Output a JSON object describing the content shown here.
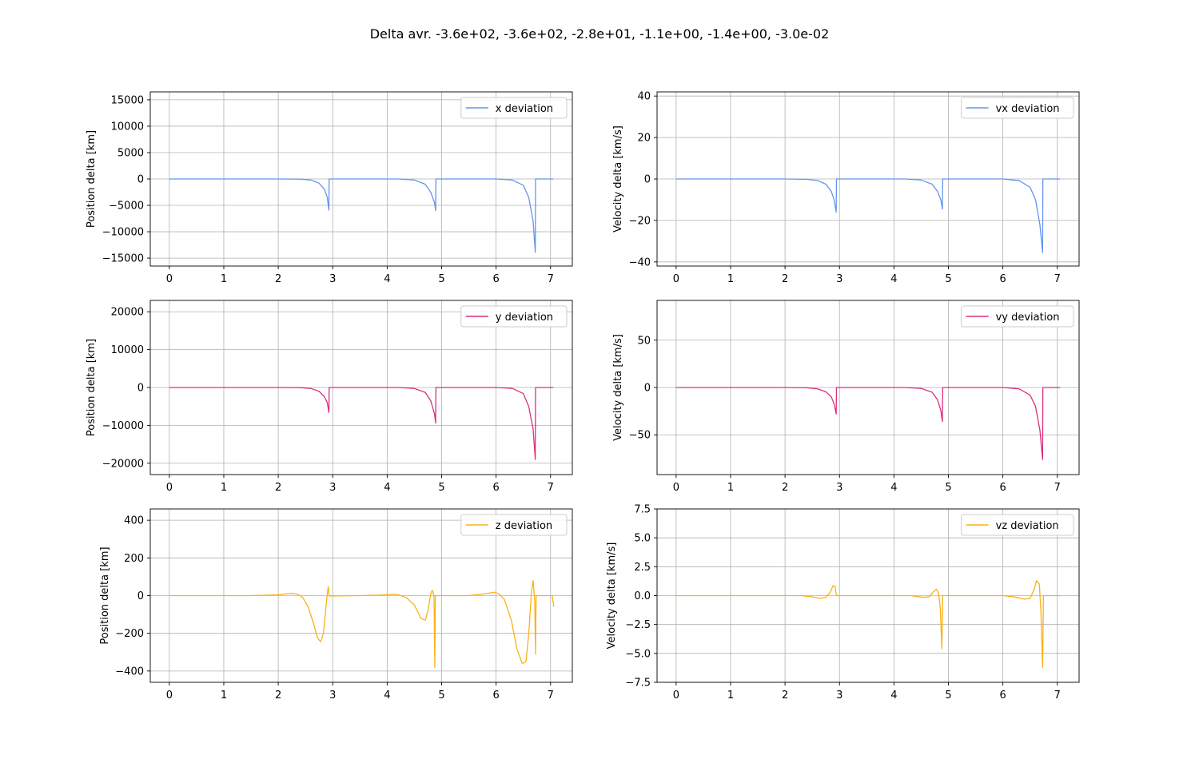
{
  "figure": {
    "suptitle": "Delta avr. -3.6e+02, -3.6e+02, -2.8e+01, -1.1e+00, -1.4e+00, -3.0e-02"
  },
  "chart_data": [
    {
      "type": "line",
      "ylabel": "Position delta [km]",
      "xlim": [
        -0.35,
        7.4
      ],
      "ylim": [
        -16500,
        16500
      ],
      "xticks": [
        0,
        1,
        2,
        3,
        4,
        5,
        6,
        7
      ],
      "yticks": [
        -15000,
        -10000,
        -5000,
        0,
        5000,
        10000,
        15000
      ],
      "grid": true,
      "legend_position": "upper-right",
      "series": [
        {
          "name": "x deviation",
          "color": "#6495ED",
          "points": [
            [
              0,
              0
            ],
            [
              2.0,
              0
            ],
            [
              2.4,
              -30
            ],
            [
              2.6,
              -200
            ],
            [
              2.75,
              -800
            ],
            [
              2.85,
              -2000
            ],
            [
              2.9,
              -3500
            ],
            [
              2.93,
              -5900
            ],
            [
              2.935,
              0
            ],
            [
              4.2,
              0
            ],
            [
              4.5,
              -200
            ],
            [
              4.7,
              -1000
            ],
            [
              4.8,
              -2500
            ],
            [
              4.87,
              -4500
            ],
            [
              4.89,
              -6000
            ],
            [
              4.895,
              0
            ],
            [
              6.0,
              0
            ],
            [
              6.3,
              -200
            ],
            [
              6.5,
              -1200
            ],
            [
              6.6,
              -3500
            ],
            [
              6.68,
              -8000
            ],
            [
              6.72,
              -13900
            ],
            [
              6.725,
              0
            ],
            [
              7.05,
              0
            ]
          ]
        }
      ]
    },
    {
      "type": "line",
      "ylabel": "Velocity delta [km/s]",
      "xlim": [
        -0.35,
        7.4
      ],
      "ylim": [
        -42,
        42
      ],
      "xticks": [
        0,
        1,
        2,
        3,
        4,
        5,
        6,
        7
      ],
      "yticks": [
        -40,
        -20,
        0,
        20,
        40
      ],
      "grid": true,
      "legend_position": "upper-right",
      "series": [
        {
          "name": "vx deviation",
          "color": "#6495ED",
          "points": [
            [
              0,
              0
            ],
            [
              2.0,
              0
            ],
            [
              2.4,
              -0.2
            ],
            [
              2.6,
              -0.8
            ],
            [
              2.75,
              -2.5
            ],
            [
              2.85,
              -6
            ],
            [
              2.9,
              -10
            ],
            [
              2.94,
              -16
            ],
            [
              2.945,
              0
            ],
            [
              4.2,
              0
            ],
            [
              4.5,
              -0.5
            ],
            [
              4.7,
              -2.5
            ],
            [
              4.8,
              -6
            ],
            [
              4.86,
              -10
            ],
            [
              4.89,
              -14.5
            ],
            [
              4.895,
              0
            ],
            [
              6.0,
              0
            ],
            [
              6.3,
              -0.8
            ],
            [
              6.5,
              -4
            ],
            [
              6.6,
              -10
            ],
            [
              6.68,
              -22
            ],
            [
              6.73,
              -35.5
            ],
            [
              6.735,
              0
            ],
            [
              7.05,
              0
            ]
          ]
        }
      ]
    },
    {
      "type": "line",
      "ylabel": "Position delta [km]",
      "xlim": [
        -0.35,
        7.4
      ],
      "ylim": [
        -23000,
        23000
      ],
      "xticks": [
        0,
        1,
        2,
        3,
        4,
        5,
        6,
        7
      ],
      "yticks": [
        -20000,
        -10000,
        0,
        10000,
        20000
      ],
      "grid": true,
      "legend_position": "upper-right",
      "series": [
        {
          "name": "y deviation",
          "color": "#DC2F7D",
          "points": [
            [
              0,
              0
            ],
            [
              2.0,
              0
            ],
            [
              2.4,
              -40
            ],
            [
              2.6,
              -250
            ],
            [
              2.75,
              -1000
            ],
            [
              2.85,
              -2500
            ],
            [
              2.9,
              -4000
            ],
            [
              2.93,
              -6600
            ],
            [
              2.935,
              0
            ],
            [
              4.2,
              0
            ],
            [
              4.5,
              -250
            ],
            [
              4.7,
              -1300
            ],
            [
              4.8,
              -3500
            ],
            [
              4.87,
              -7000
            ],
            [
              4.89,
              -9400
            ],
            [
              4.895,
              0
            ],
            [
              6.0,
              0
            ],
            [
              6.3,
              -250
            ],
            [
              6.5,
              -1600
            ],
            [
              6.6,
              -5000
            ],
            [
              6.68,
              -11000
            ],
            [
              6.72,
              -19000
            ],
            [
              6.725,
              0
            ],
            [
              7.05,
              0
            ]
          ]
        }
      ]
    },
    {
      "type": "line",
      "ylabel": "Velocity delta [km/s]",
      "xlim": [
        -0.35,
        7.4
      ],
      "ylim": [
        -92,
        92
      ],
      "xticks": [
        0,
        1,
        2,
        3,
        4,
        5,
        6,
        7
      ],
      "yticks": [
        -50,
        0,
        50
      ],
      "grid": true,
      "legend_position": "upper-right",
      "series": [
        {
          "name": "vy deviation",
          "color": "#DC2F7D",
          "points": [
            [
              0,
              0
            ],
            [
              2.0,
              0
            ],
            [
              2.4,
              -0.3
            ],
            [
              2.6,
              -1.5
            ],
            [
              2.75,
              -4.5
            ],
            [
              2.85,
              -10
            ],
            [
              2.9,
              -17
            ],
            [
              2.94,
              -28
            ],
            [
              2.945,
              0
            ],
            [
              4.2,
              0
            ],
            [
              4.5,
              -1
            ],
            [
              4.7,
              -5
            ],
            [
              4.8,
              -13
            ],
            [
              4.86,
              -24
            ],
            [
              4.89,
              -36
            ],
            [
              4.895,
              0
            ],
            [
              6.0,
              0
            ],
            [
              6.3,
              -1.5
            ],
            [
              6.5,
              -8
            ],
            [
              6.6,
              -20
            ],
            [
              6.68,
              -45
            ],
            [
              6.73,
              -76
            ],
            [
              6.735,
              0
            ],
            [
              7.05,
              0
            ]
          ]
        }
      ]
    },
    {
      "type": "line",
      "ylabel": "Position delta [km]",
      "xlim": [
        -0.35,
        7.4
      ],
      "ylim": [
        -460,
        460
      ],
      "xticks": [
        0,
        1,
        2,
        3,
        4,
        5,
        6,
        7
      ],
      "yticks": [
        -400,
        -200,
        0,
        200,
        400
      ],
      "grid": true,
      "legend_position": "upper-right",
      "series": [
        {
          "name": "z deviation",
          "color": "#FBB117",
          "points": [
            [
              0,
              0
            ],
            [
              1.5,
              0
            ],
            [
              2.0,
              4
            ],
            [
              2.15,
              10
            ],
            [
              2.25,
              12
            ],
            [
              2.35,
              8
            ],
            [
              2.45,
              -10
            ],
            [
              2.55,
              -60
            ],
            [
              2.65,
              -150
            ],
            [
              2.72,
              -225
            ],
            [
              2.78,
              -245
            ],
            [
              2.83,
              -200
            ],
            [
              2.87,
              -80
            ],
            [
              2.9,
              10
            ],
            [
              2.92,
              48
            ],
            [
              2.935,
              -2
            ],
            [
              3.5,
              0
            ],
            [
              3.9,
              3
            ],
            [
              4.1,
              7
            ],
            [
              4.2,
              5
            ],
            [
              4.35,
              -10
            ],
            [
              4.5,
              -50
            ],
            [
              4.62,
              -120
            ],
            [
              4.7,
              -130
            ],
            [
              4.75,
              -80
            ],
            [
              4.8,
              10
            ],
            [
              4.83,
              28
            ],
            [
              4.86,
              0
            ],
            [
              4.875,
              -380
            ],
            [
              4.885,
              0
            ],
            [
              5.5,
              0
            ],
            [
              5.8,
              10
            ],
            [
              5.97,
              18
            ],
            [
              6.05,
              10
            ],
            [
              6.15,
              -20
            ],
            [
              6.28,
              -130
            ],
            [
              6.38,
              -280
            ],
            [
              6.48,
              -360
            ],
            [
              6.55,
              -350
            ],
            [
              6.6,
              -200
            ],
            [
              6.65,
              20
            ],
            [
              6.68,
              80
            ],
            [
              6.71,
              -30
            ],
            [
              6.725,
              -310
            ],
            [
              6.735,
              0
            ],
            [
              7.03,
              0
            ],
            [
              7.06,
              -60
            ]
          ]
        }
      ]
    },
    {
      "type": "line",
      "ylabel": "Velocity delta [km/s]",
      "xlim": [
        -0.35,
        7.4
      ],
      "ylim": [
        -7.5,
        7.5
      ],
      "xticks": [
        0,
        1,
        2,
        3,
        4,
        5,
        6,
        7
      ],
      "yticks": [
        -7.5,
        -5.0,
        -2.5,
        0.0,
        2.5,
        5.0,
        7.5
      ],
      "ytick_labels": [
        "−7.5",
        "−5.0",
        "−2.5",
        "0.0",
        "2.5",
        "5.0",
        "7.5"
      ],
      "grid": true,
      "legend_position": "upper-right",
      "series": [
        {
          "name": "vz deviation",
          "color": "#FBB117",
          "points": [
            [
              0,
              0
            ],
            [
              2.0,
              0
            ],
            [
              2.3,
              0
            ],
            [
              2.5,
              -0.1
            ],
            [
              2.65,
              -0.25
            ],
            [
              2.75,
              -0.15
            ],
            [
              2.83,
              0.3
            ],
            [
              2.88,
              0.85
            ],
            [
              2.92,
              0.8
            ],
            [
              2.945,
              0
            ],
            [
              4.3,
              0
            ],
            [
              4.55,
              -0.15
            ],
            [
              4.65,
              -0.1
            ],
            [
              4.72,
              0.3
            ],
            [
              4.78,
              0.55
            ],
            [
              4.82,
              0.2
            ],
            [
              4.85,
              -1.0
            ],
            [
              4.88,
              -4.6
            ],
            [
              4.895,
              0
            ],
            [
              6.0,
              0
            ],
            [
              6.2,
              -0.1
            ],
            [
              6.4,
              -0.3
            ],
            [
              6.5,
              -0.25
            ],
            [
              6.57,
              0.5
            ],
            [
              6.62,
              1.3
            ],
            [
              6.67,
              1.0
            ],
            [
              6.7,
              -1.5
            ],
            [
              6.73,
              -6.2
            ],
            [
              6.745,
              0
            ],
            [
              7.05,
              0
            ]
          ]
        }
      ]
    }
  ]
}
